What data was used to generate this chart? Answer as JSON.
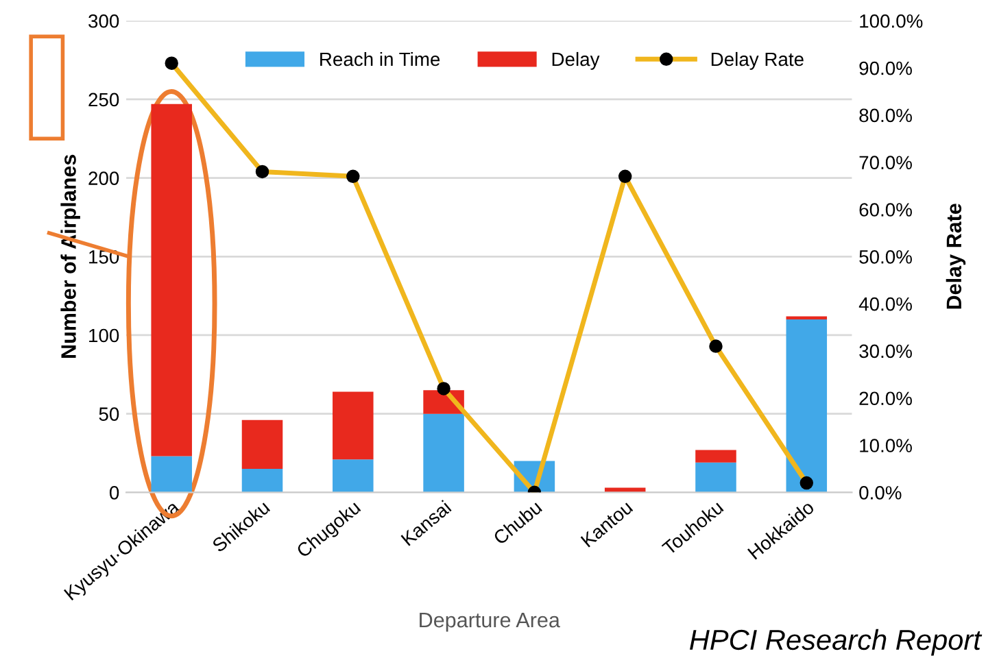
{
  "chart_data": {
    "type": "bar",
    "stacked": true,
    "categories": [
      "Kyusyu·Okinawa",
      "Shikoku",
      "Chugoku",
      "Kansai",
      "Chubu",
      "Kantou",
      "Touhoku",
      "Hokkaido"
    ],
    "series": [
      {
        "name": "Reach in Time",
        "color": "#41a8e8",
        "values": [
          23,
          15,
          21,
          50,
          20,
          0,
          19,
          110
        ]
      },
      {
        "name": "Delay",
        "color": "#e8291e",
        "values": [
          224,
          31,
          43,
          15,
          0,
          3,
          8,
          2
        ]
      },
      {
        "name": "Delay Rate",
        "type": "line",
        "axis": "y2",
        "color": "#f0b61d",
        "marker": "circle",
        "values": [
          91,
          68,
          67,
          22,
          0,
          67,
          31,
          2
        ]
      }
    ],
    "xlabel": "Departure Area",
    "ylabel": "Number of Airplanes",
    "y2label": "Delay Rate",
    "ylim": [
      0,
      300
    ],
    "yticks": [
      0,
      50,
      100,
      150,
      200,
      250,
      300
    ],
    "y2lim": [
      0,
      100
    ],
    "y2ticks": [
      {
        "value": 0,
        "label": "0.0%"
      },
      {
        "value": 10,
        "label": "10.0%"
      },
      {
        "value": 20,
        "label": "20.0%"
      },
      {
        "value": 30,
        "label": "30.0%"
      },
      {
        "value": 40,
        "label": "40.0%"
      },
      {
        "value": 50,
        "label": "50.0%"
      },
      {
        "value": 60,
        "label": "60.0%"
      },
      {
        "value": 70,
        "label": "70.0%"
      },
      {
        "value": 80,
        "label": "80.0%"
      },
      {
        "value": 90,
        "label": "90.0%"
      },
      {
        "value": 100,
        "label": "100.0%"
      }
    ],
    "grid": "y",
    "legend": "top",
    "annotations": [
      "HPCI Research Report"
    ]
  }
}
